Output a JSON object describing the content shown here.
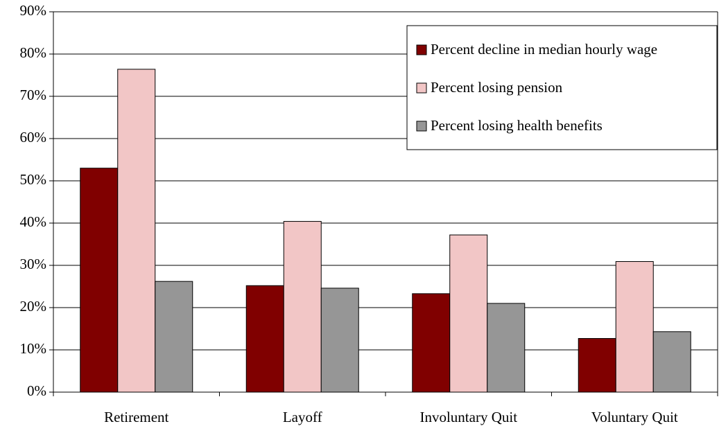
{
  "chart_data": {
    "type": "bar",
    "categories": [
      "Retirement",
      "Layoff",
      "Involuntary Quit",
      "Voluntary Quit"
    ],
    "series": [
      {
        "name": "Percent decline in median hourly wage",
        "color": "#800000",
        "values": [
          53,
          25.2,
          23.3,
          12.7
        ]
      },
      {
        "name": "Percent losing pension",
        "color": "#f2c6c6",
        "values": [
          76.4,
          40.4,
          37.2,
          30.9
        ]
      },
      {
        "name": "Percent losing health benefits",
        "color": "#969696",
        "values": [
          26.2,
          24.6,
          21,
          14.3
        ]
      }
    ],
    "ylim": [
      0,
      90
    ],
    "yticks": [
      {
        "value": 0,
        "label": "0%"
      },
      {
        "value": 10,
        "label": "10%"
      },
      {
        "value": 20,
        "label": "20%"
      },
      {
        "value": 30,
        "label": "30%"
      },
      {
        "value": 40,
        "label": "40%"
      },
      {
        "value": 50,
        "label": "50%"
      },
      {
        "value": 60,
        "label": "60%"
      },
      {
        "value": 70,
        "label": "70%"
      },
      {
        "value": 80,
        "label": "80%"
      },
      {
        "value": 90,
        "label": "90%"
      }
    ],
    "grid": true,
    "legend": "top-right"
  }
}
